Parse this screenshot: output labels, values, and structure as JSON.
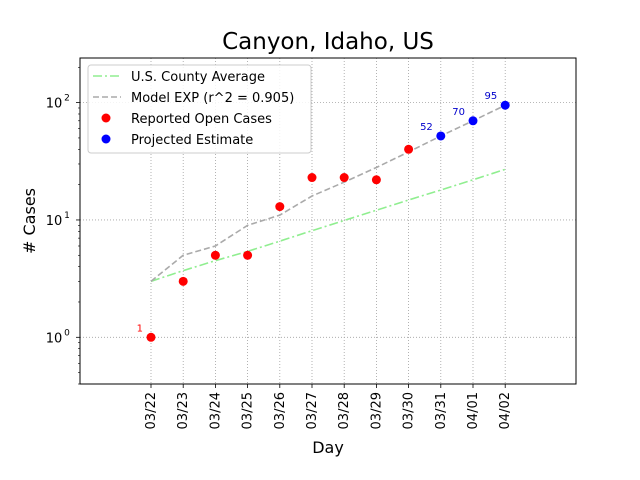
{
  "chart_data": {
    "type": "scatter",
    "title": "Canyon, Idaho, US",
    "xlabel": "Day",
    "ylabel": "# Cases",
    "yscale": "log",
    "ylim": [
      0.4,
      240
    ],
    "grid": true,
    "legend_position": "top-left",
    "categories": [
      "03/22",
      "03/23",
      "03/24",
      "03/25",
      "03/26",
      "03/27",
      "03/28",
      "03/29",
      "03/30",
      "03/31",
      "04/01",
      "04/02"
    ],
    "y_ticks": [
      {
        "value": 1,
        "base": "10",
        "exp": "0"
      },
      {
        "value": 10,
        "base": "10",
        "exp": "1"
      },
      {
        "value": 100,
        "base": "10",
        "exp": "2"
      }
    ],
    "series": [
      {
        "name": "U.S. County Average",
        "style": "dashdot",
        "color": "#90ee90",
        "x": [
          "03/22",
          "03/23",
          "03/24",
          "03/25",
          "03/26",
          "03/27",
          "03/28",
          "03/29",
          "03/30",
          "03/31",
          "04/01",
          "04/02"
        ],
        "values": [
          3.0,
          3.7,
          4.5,
          5.4,
          6.6,
          8.1,
          9.9,
          12.1,
          14.8,
          18.0,
          22.0,
          27.0
        ]
      },
      {
        "name": "Model EXP (r^2 = 0.905)",
        "style": "dashed",
        "color": "#aaaaaa",
        "x": [
          "03/22",
          "03/23",
          "03/24",
          "03/25",
          "03/26",
          "03/27",
          "03/28",
          "03/29",
          "03/30",
          "03/31",
          "04/01",
          "04/02"
        ],
        "values": [
          3.0,
          5.0,
          6.0,
          9.0,
          11.0,
          16.0,
          21.0,
          28.0,
          38.0,
          52.0,
          70.0,
          95.0
        ]
      },
      {
        "name": "Reported Open Cases",
        "style": "marker",
        "color": "#ff0000",
        "x": [
          "03/22",
          "03/23",
          "03/24",
          "03/25",
          "03/26",
          "03/27",
          "03/28",
          "03/29",
          "03/30"
        ],
        "values": [
          1,
          3,
          5,
          5,
          13,
          23,
          23,
          22,
          40
        ]
      },
      {
        "name": "Projected Estimate",
        "style": "marker",
        "color": "#0000ff",
        "x": [
          "03/31",
          "04/01",
          "04/02"
        ],
        "values": [
          52,
          70,
          95
        ]
      }
    ],
    "annotations": [
      {
        "x": "03/22",
        "value": 1,
        "text": "1",
        "color": "#ff0000"
      },
      {
        "x": "03/31",
        "value": 52,
        "text": "52",
        "color": "#0000cc"
      },
      {
        "x": "04/01",
        "value": 70,
        "text": "70",
        "color": "#0000cc"
      },
      {
        "x": "04/02",
        "value": 95,
        "text": "95",
        "color": "#0000cc"
      }
    ]
  }
}
